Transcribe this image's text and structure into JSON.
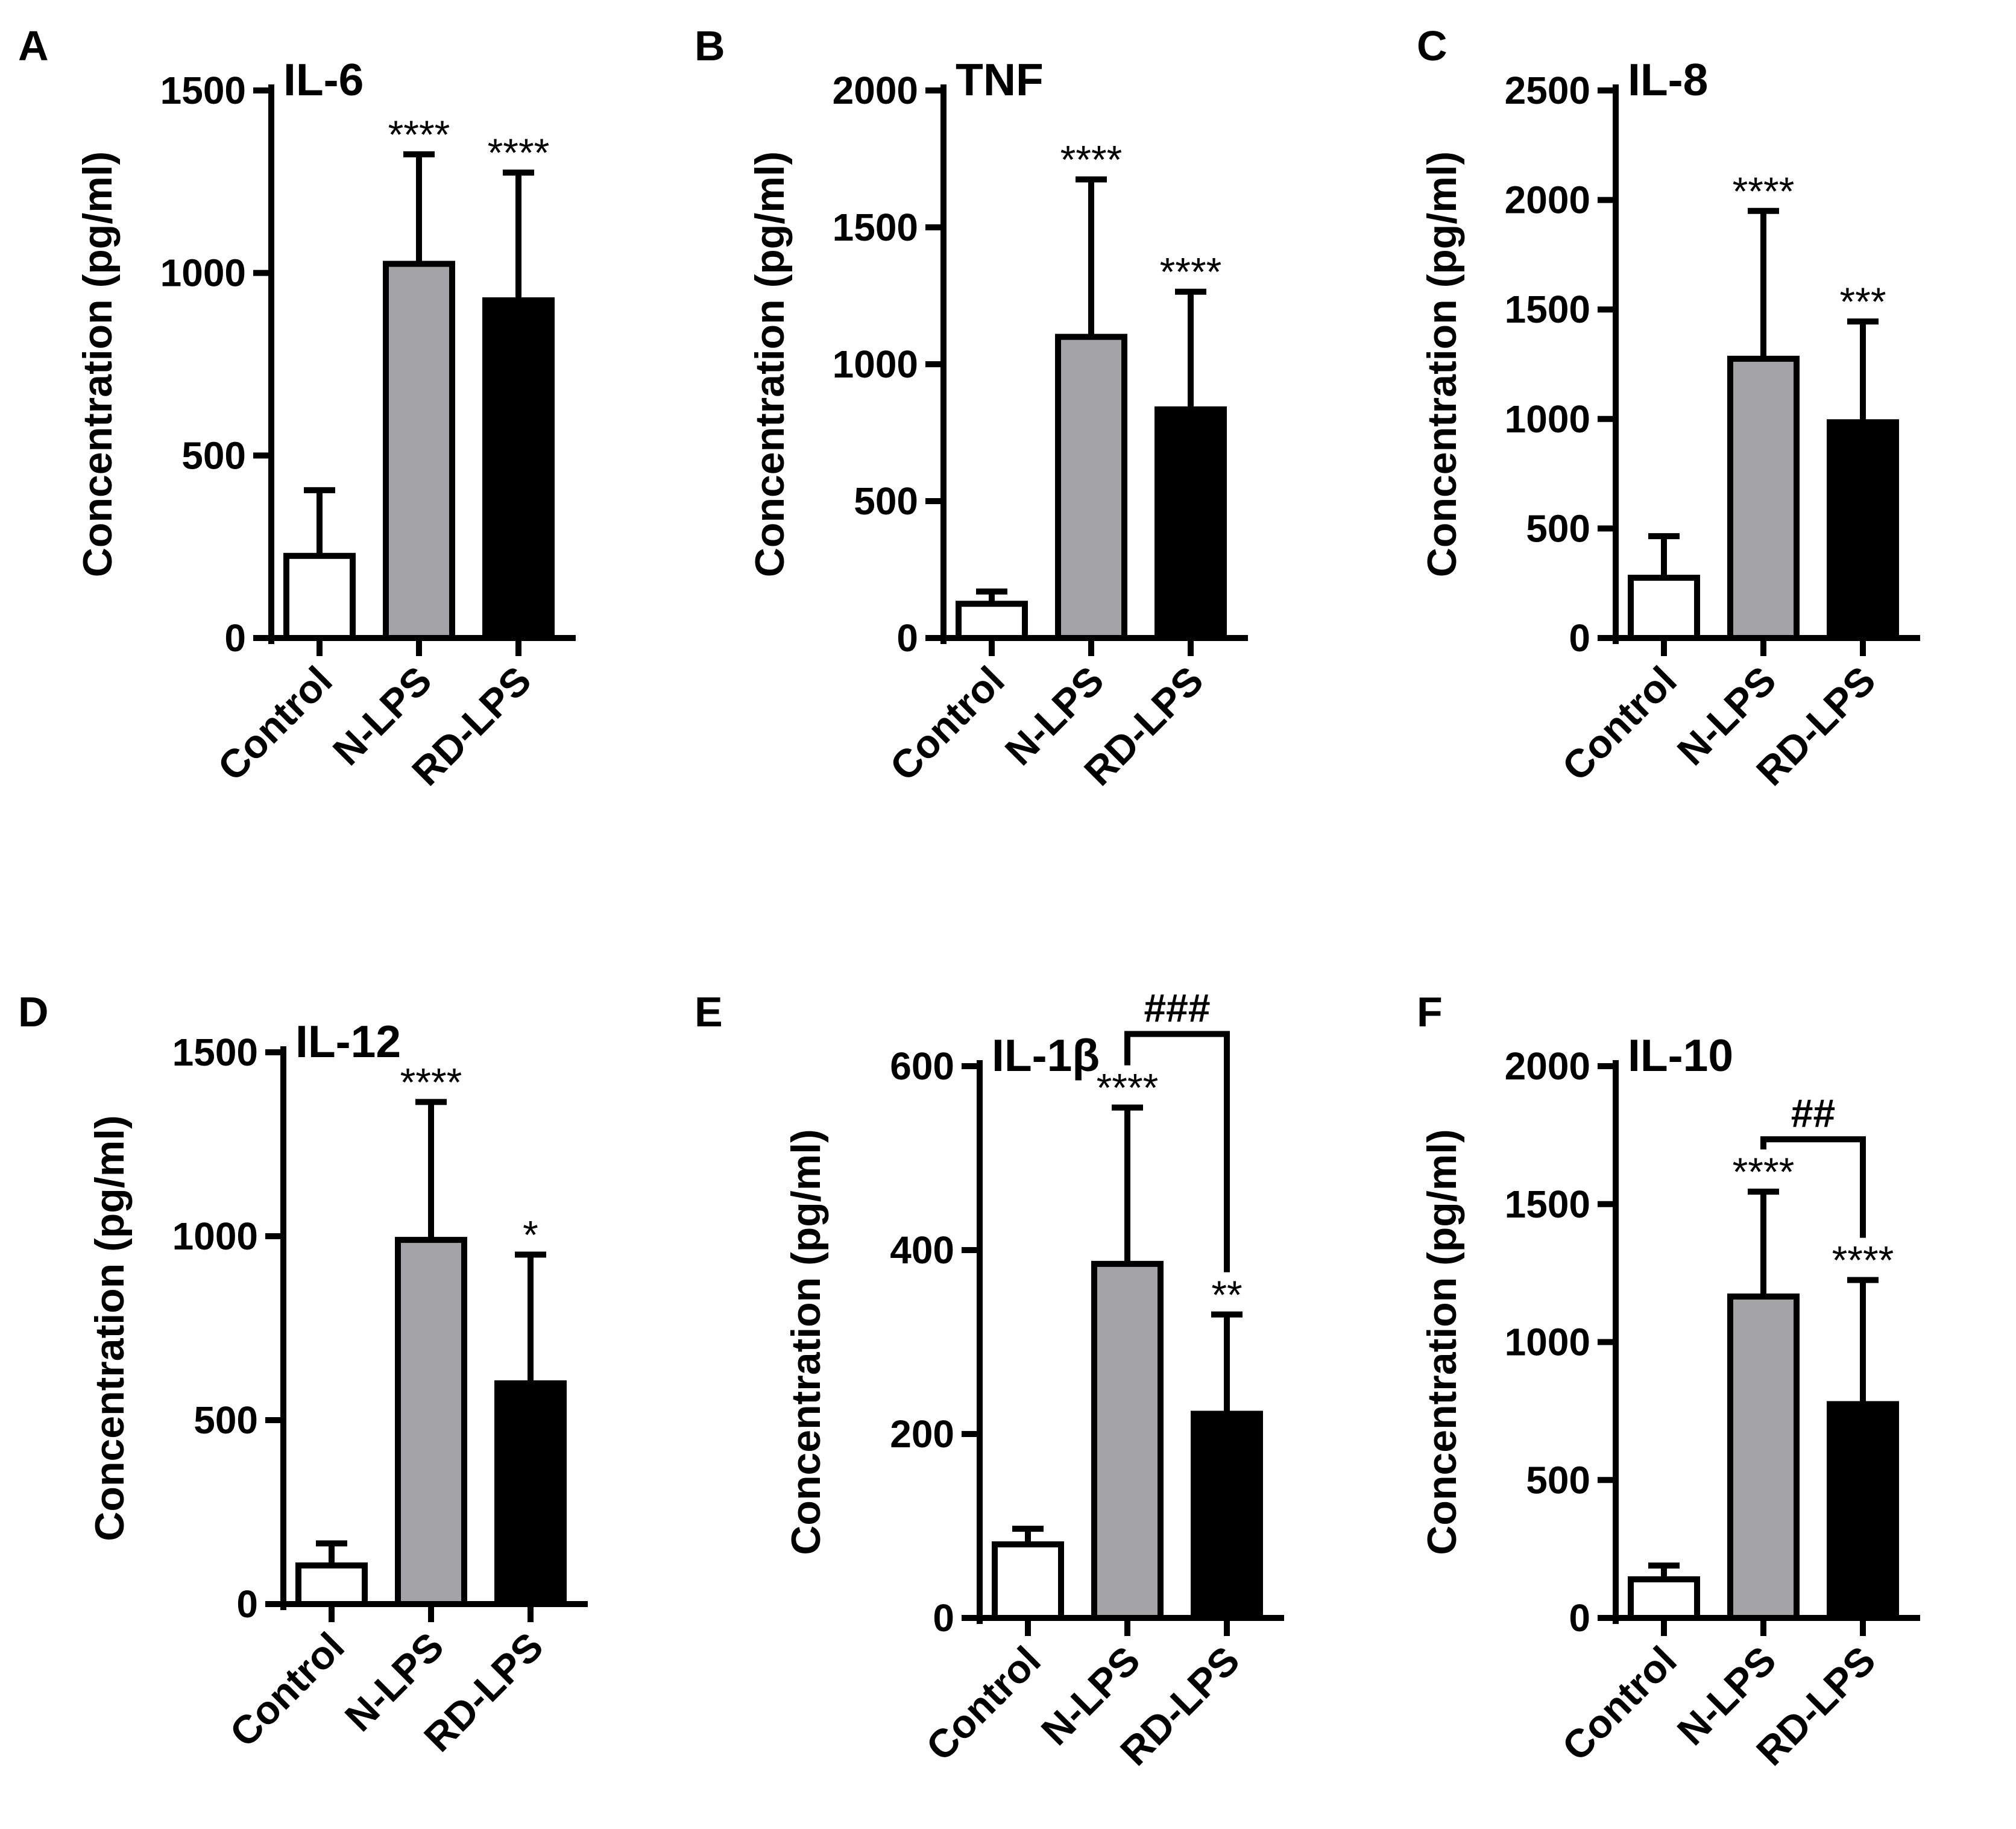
{
  "colors": {
    "control": "#ffffff",
    "n_lps": "#a3a3a8",
    "rd_lps": "#000000",
    "stroke": "#000000"
  },
  "chart_data": [
    {
      "type": "bar",
      "panel": "A",
      "title": "IL-6",
      "ylabel": "Concentration (pg/ml)",
      "xlabel": "",
      "categories": [
        "Control",
        "N-LPS",
        "RD-LPS"
      ],
      "values": [
        225,
        1025,
        925
      ],
      "error_upper": [
        405,
        1325,
        1275
      ],
      "annotations": [
        "",
        "****",
        "****"
      ],
      "ylim": [
        0,
        1500
      ],
      "yticks": [
        0,
        500,
        1000,
        1500
      ],
      "grid": false
    },
    {
      "type": "bar",
      "panel": "B",
      "title": "TNF",
      "ylabel": "Concentration (pg/ml)",
      "xlabel": "",
      "categories": [
        "Control",
        "N-LPS",
        "RD-LPS"
      ],
      "values": [
        125,
        1100,
        835
      ],
      "error_upper": [
        170,
        1675,
        1265
      ],
      "annotations": [
        "",
        "****",
        "****"
      ],
      "ylim": [
        0,
        2000
      ],
      "yticks": [
        0,
        500,
        1000,
        1500,
        2000
      ],
      "grid": false
    },
    {
      "type": "bar",
      "panel": "C",
      "title": "IL-8",
      "ylabel": "Concentration (pg/ml)",
      "xlabel": "",
      "categories": [
        "Control",
        "N-LPS",
        "RD-LPS"
      ],
      "values": [
        275,
        1275,
        985
      ],
      "error_upper": [
        465,
        1950,
        1445
      ],
      "annotations": [
        "",
        "****",
        "***"
      ],
      "ylim": [
        0,
        2500
      ],
      "yticks": [
        0,
        500,
        1000,
        1500,
        2000,
        2500
      ],
      "grid": false
    },
    {
      "type": "bar",
      "panel": "D",
      "title": "IL-12",
      "ylabel": "Concentration (pg/ml)",
      "xlabel": "",
      "categories": [
        "Control",
        "N-LPS",
        "RD-LPS"
      ],
      "values": [
        105,
        990,
        600
      ],
      "error_upper": [
        165,
        1365,
        950
      ],
      "annotations": [
        "",
        "****",
        "*"
      ],
      "ylim": [
        0,
        1500
      ],
      "yticks": [
        0,
        500,
        1000,
        1500
      ],
      "grid": false
    },
    {
      "type": "bar",
      "panel": "E",
      "title": "IL-1β",
      "ylabel": "Concentration (pg/ml)",
      "xlabel": "",
      "categories": [
        "Control",
        "N-LPS",
        "RD-LPS"
      ],
      "values": [
        80,
        385,
        222
      ],
      "error_upper": [
        97,
        555,
        330
      ],
      "annotations": [
        "",
        "****",
        "**"
      ],
      "bracket": {
        "label": "###",
        "from": 1,
        "to": 2,
        "level": 635
      },
      "ylim": [
        0,
        600
      ],
      "yticks": [
        0,
        200,
        400,
        600
      ],
      "grid": false
    },
    {
      "type": "bar",
      "panel": "F",
      "title": "IL-10",
      "ylabel": "Concentration (pg/ml)",
      "xlabel": "",
      "categories": [
        "Control",
        "N-LPS",
        "RD-LPS"
      ],
      "values": [
        140,
        1165,
        775
      ],
      "error_upper": [
        190,
        1545,
        1225
      ],
      "annotations": [
        "",
        "****",
        "****"
      ],
      "bracket": {
        "label": "##",
        "from": 1,
        "to": 2,
        "level": 1735
      },
      "ylim": [
        0,
        2000
      ],
      "yticks": [
        0,
        500,
        1000,
        1500,
        2000
      ],
      "grid": false
    }
  ]
}
